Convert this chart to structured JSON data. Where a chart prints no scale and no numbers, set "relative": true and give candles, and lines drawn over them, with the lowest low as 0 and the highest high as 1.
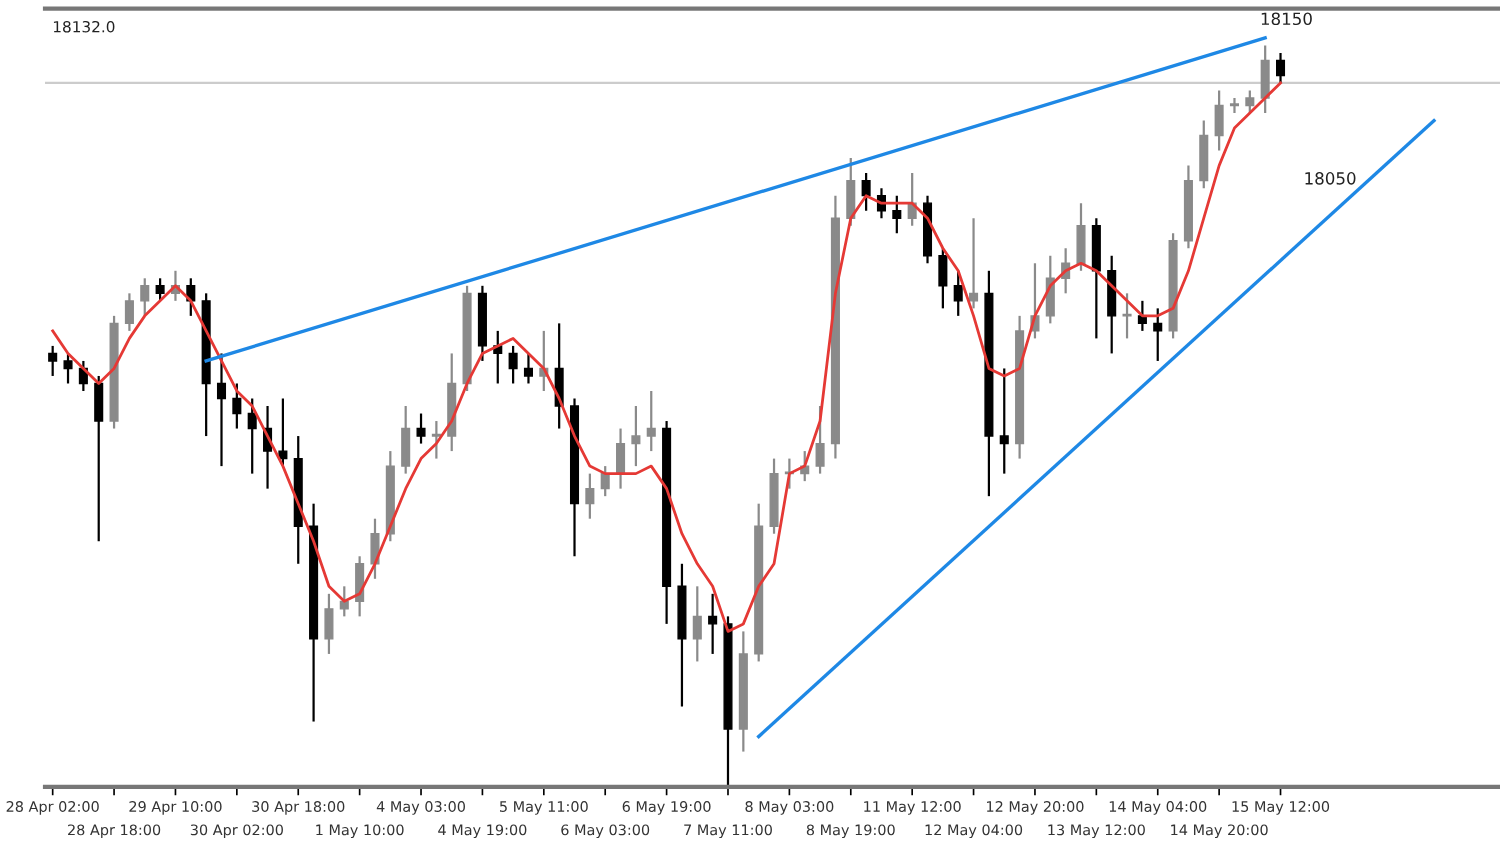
{
  "chart_data": {
    "type": "candlestick",
    "relative": true,
    "categories": [
      "28 Apr 02:00",
      null,
      null,
      null,
      "28 Apr 18:00",
      null,
      null,
      null,
      "29 Apr 10:00",
      null,
      null,
      null,
      "30 Apr 02:00",
      null,
      null,
      null,
      "30 Apr 18:00",
      null,
      null,
      null,
      "1 May 10:00",
      null,
      null,
      null,
      "4 May 03:00",
      null,
      null,
      null,
      "4 May 19:00",
      null,
      null,
      null,
      "5 May 11:00",
      null,
      null,
      null,
      "6 May 03:00",
      null,
      null,
      null,
      "6 May 19:00",
      null,
      null,
      null,
      "7 May 11:00",
      null,
      null,
      null,
      "8 May 03:00",
      null,
      null,
      null,
      "8 May 19:00",
      null,
      null,
      null,
      "11 May 12:00",
      null,
      null,
      null,
      "12 May 04:00",
      null,
      null,
      null,
      "12 May 20:00",
      null,
      null,
      null,
      "13 May 12:00",
      null,
      null,
      null,
      "14 May 04:00",
      null,
      null,
      null,
      "14 May 20:00",
      null,
      null,
      null,
      "15 May 12:00",
      null,
      null,
      null,
      null,
      null,
      null,
      null,
      null,
      null,
      null,
      null,
      null,
      null
    ],
    "ohlc": [
      [
        0.59,
        0.6,
        0.56,
        0.58
      ],
      [
        0.58,
        0.59,
        0.55,
        0.57
      ],
      [
        0.57,
        0.58,
        0.54,
        0.55
      ],
      [
        0.55,
        0.56,
        0.34,
        0.5
      ],
      [
        0.5,
        0.64,
        0.49,
        0.63
      ],
      [
        0.63,
        0.67,
        0.62,
        0.66
      ],
      [
        0.66,
        0.69,
        0.64,
        0.68
      ],
      [
        0.68,
        0.69,
        0.66,
        0.67
      ],
      [
        0.67,
        0.7,
        0.66,
        0.68
      ],
      [
        0.68,
        0.69,
        0.64,
        0.66
      ],
      [
        0.66,
        0.67,
        0.48,
        0.55
      ],
      [
        0.55,
        0.59,
        0.44,
        0.53
      ],
      [
        0.53,
        0.55,
        0.49,
        0.51
      ],
      [
        0.51,
        0.53,
        0.43,
        0.49
      ],
      [
        0.49,
        0.52,
        0.41,
        0.46
      ],
      [
        0.46,
        0.53,
        0.44,
        0.45
      ],
      [
        0.45,
        0.48,
        0.31,
        0.36
      ],
      [
        0.36,
        0.39,
        0.1,
        0.21
      ],
      [
        0.21,
        0.27,
        0.19,
        0.25
      ],
      [
        0.25,
        0.28,
        0.24,
        0.26
      ],
      [
        0.26,
        0.32,
        0.24,
        0.31
      ],
      [
        0.31,
        0.37,
        0.29,
        0.35
      ],
      [
        0.35,
        0.46,
        0.34,
        0.44
      ],
      [
        0.44,
        0.52,
        0.43,
        0.49
      ],
      [
        0.49,
        0.51,
        0.47,
        0.48
      ],
      [
        0.48,
        0.5,
        0.45,
        0.48
      ],
      [
        0.48,
        0.59,
        0.46,
        0.55
      ],
      [
        0.55,
        0.68,
        0.54,
        0.67
      ],
      [
        0.67,
        0.68,
        0.58,
        0.6
      ],
      [
        0.6,
        0.62,
        0.55,
        0.59
      ],
      [
        0.59,
        0.6,
        0.55,
        0.57
      ],
      [
        0.57,
        0.59,
        0.55,
        0.56
      ],
      [
        0.56,
        0.62,
        0.54,
        0.57
      ],
      [
        0.57,
        0.63,
        0.49,
        0.52
      ],
      [
        0.52,
        0.53,
        0.32,
        0.39
      ],
      [
        0.39,
        0.43,
        0.37,
        0.41
      ],
      [
        0.41,
        0.44,
        0.4,
        0.43
      ],
      [
        0.43,
        0.49,
        0.41,
        0.47
      ],
      [
        0.47,
        0.52,
        0.44,
        0.48
      ],
      [
        0.48,
        0.54,
        0.46,
        0.49
      ],
      [
        0.49,
        0.5,
        0.23,
        0.28
      ],
      [
        0.28,
        0.31,
        0.12,
        0.21
      ],
      [
        0.21,
        0.28,
        0.18,
        0.24
      ],
      [
        0.24,
        0.27,
        0.19,
        0.23
      ],
      [
        0.23,
        0.24,
        0.0,
        0.09
      ],
      [
        0.09,
        0.22,
        0.06,
        0.19
      ],
      [
        0.19,
        0.39,
        0.18,
        0.36
      ],
      [
        0.36,
        0.45,
        0.35,
        0.43
      ],
      [
        0.43,
        0.45,
        0.41,
        0.43
      ],
      [
        0.43,
        0.46,
        0.42,
        0.44
      ],
      [
        0.44,
        0.52,
        0.43,
        0.47
      ],
      [
        0.47,
        0.8,
        0.45,
        0.77
      ],
      [
        0.77,
        0.85,
        0.76,
        0.82
      ],
      [
        0.82,
        0.83,
        0.78,
        0.8
      ],
      [
        0.8,
        0.81,
        0.77,
        0.78
      ],
      [
        0.78,
        0.8,
        0.75,
        0.77
      ],
      [
        0.77,
        0.83,
        0.76,
        0.79
      ],
      [
        0.79,
        0.8,
        0.71,
        0.72
      ],
      [
        0.72,
        0.73,
        0.65,
        0.68
      ],
      [
        0.68,
        0.7,
        0.64,
        0.66
      ],
      [
        0.66,
        0.77,
        0.65,
        0.67
      ],
      [
        0.67,
        0.7,
        0.4,
        0.48
      ],
      [
        0.48,
        0.57,
        0.43,
        0.47
      ],
      [
        0.47,
        0.64,
        0.45,
        0.62
      ],
      [
        0.62,
        0.71,
        0.61,
        0.64
      ],
      [
        0.64,
        0.72,
        0.63,
        0.69
      ],
      [
        0.69,
        0.73,
        0.67,
        0.71
      ],
      [
        0.71,
        0.79,
        0.7,
        0.76
      ],
      [
        0.76,
        0.77,
        0.61,
        0.7
      ],
      [
        0.7,
        0.72,
        0.59,
        0.64
      ],
      [
        0.64,
        0.67,
        0.61,
        0.64
      ],
      [
        0.64,
        0.66,
        0.62,
        0.63
      ],
      [
        0.63,
        0.65,
        0.58,
        0.62
      ],
      [
        0.62,
        0.75,
        0.61,
        0.74
      ],
      [
        0.74,
        0.84,
        0.73,
        0.82
      ],
      [
        0.82,
        0.9,
        0.81,
        0.88
      ],
      [
        0.88,
        0.94,
        0.86,
        0.92
      ],
      [
        0.92,
        0.93,
        0.91,
        0.92
      ],
      [
        0.92,
        0.94,
        0.91,
        0.93
      ],
      [
        0.93,
        1.0,
        0.91,
        0.98
      ],
      [
        0.98,
        0.99,
        0.95,
        0.96
      ],
      null,
      null,
      null,
      null,
      null,
      null,
      null,
      null,
      null,
      null,
      null,
      null,
      null
    ],
    "series": [
      {
        "type": "line",
        "color": "#e53935",
        "values": [
          0.62,
          0.59,
          0.57,
          0.55,
          0.57,
          0.61,
          0.64,
          0.66,
          0.68,
          0.66,
          0.62,
          0.58,
          0.54,
          0.52,
          0.48,
          0.44,
          0.39,
          0.34,
          0.28,
          0.26,
          0.27,
          0.31,
          0.36,
          0.41,
          0.45,
          0.47,
          0.5,
          0.55,
          0.59,
          0.6,
          0.61,
          0.59,
          0.57,
          0.53,
          0.48,
          0.44,
          0.43,
          0.43,
          0.43,
          0.44,
          0.41,
          0.35,
          0.31,
          0.28,
          0.22,
          0.23,
          0.28,
          0.31,
          0.43,
          0.44,
          0.5,
          0.67,
          0.77,
          0.8,
          0.79,
          0.79,
          0.79,
          0.77,
          0.73,
          0.7,
          0.64,
          0.57,
          0.56,
          0.57,
          0.64,
          0.68,
          0.7,
          0.71,
          0.7,
          0.68,
          0.66,
          0.64,
          0.64,
          0.65,
          0.7,
          0.77,
          0.84,
          0.89,
          0.91,
          0.93,
          0.95,
          null,
          null,
          null,
          null,
          null,
          null,
          null,
          null,
          null,
          null,
          null,
          null,
          null
        ]
      },
      {
        "type": "line",
        "color": "#1e88e5",
        "values": [
          null,
          null,
          null,
          null,
          null,
          null,
          null,
          null,
          null,
          null,
          0.58,
          null,
          null,
          null,
          null,
          null,
          null,
          null,
          null,
          null,
          null,
          null,
          null,
          null,
          null,
          null,
          null,
          null,
          null,
          null,
          null,
          null,
          null,
          null,
          null,
          null,
          null,
          null,
          null,
          null,
          null,
          null,
          null,
          null,
          null,
          null,
          null,
          null,
          null,
          null,
          null,
          null,
          null,
          null,
          null,
          null,
          null,
          null,
          null,
          null,
          null,
          null,
          null,
          null,
          null,
          null,
          null,
          null,
          null,
          null,
          null,
          null,
          null,
          null,
          null,
          null,
          null,
          null,
          null,
          1.01,
          null,
          null,
          null,
          null,
          null,
          null,
          null,
          null,
          null,
          null,
          null,
          null,
          null,
          null
        ]
      },
      {
        "type": "line",
        "color": "#1e88e5",
        "values": [
          null,
          null,
          null,
          null,
          null,
          null,
          null,
          null,
          null,
          null,
          null,
          null,
          null,
          null,
          null,
          null,
          null,
          null,
          null,
          null,
          null,
          null,
          null,
          null,
          null,
          null,
          null,
          null,
          null,
          null,
          null,
          null,
          null,
          null,
          null,
          null,
          null,
          null,
          null,
          null,
          null,
          null,
          null,
          null,
          null,
          null,
          0.08,
          null,
          null,
          null,
          null,
          null,
          null,
          null,
          null,
          null,
          null,
          null,
          null,
          null,
          null,
          null,
          null,
          null,
          null,
          null,
          null,
          null,
          null,
          null,
          null,
          null,
          null,
          null,
          null,
          null,
          null,
          null,
          null,
          null,
          null,
          null,
          null,
          null,
          null,
          null,
          null,
          null,
          null,
          null,
          0.9,
          null,
          null,
          null
        ]
      }
    ],
    "ref_lines": [
      {
        "axis": "y",
        "value": 0.95,
        "color": "#cccccc"
      }
    ],
    "annotations": [
      "18132.0",
      "18150",
      "18050"
    ]
  }
}
